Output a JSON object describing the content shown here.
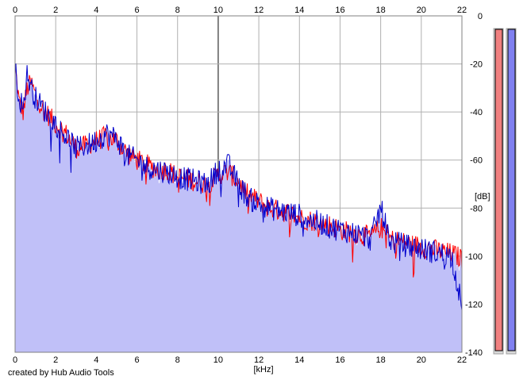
{
  "app": {
    "credit": "created by Hub Audio Tools"
  },
  "colors": {
    "fill": "#c0c0f8",
    "left_channel": "#ff0000",
    "right_channel": "#0000cc",
    "grid": "#b0b0b0",
    "grid_major": "#808080",
    "meter_left": "#f08080",
    "meter_right": "#8080f0"
  },
  "chart_data": {
    "type": "line",
    "title": "",
    "xlabel": "[kHz]",
    "ylabel": "[dB]",
    "xlim": [
      0,
      22
    ],
    "ylim": [
      -140,
      0
    ],
    "x_ticks": [
      0,
      2,
      4,
      6,
      8,
      10,
      12,
      14,
      16,
      18,
      20,
      22
    ],
    "y_ticks": [
      0,
      -20,
      -40,
      -60,
      -80,
      -100,
      -120,
      -140
    ],
    "grid": true,
    "legend": "none",
    "series": [
      {
        "color": "#ff0000",
        "x": [
          0,
          0.2,
          0.4,
          0.6,
          0.8,
          1,
          1.5,
          2,
          2.5,
          3,
          3.5,
          4,
          4.5,
          5,
          5.5,
          6,
          6.5,
          7,
          7.5,
          8,
          8.5,
          9,
          9.5,
          10,
          10.5,
          11,
          11.5,
          12,
          12.5,
          13,
          13.5,
          14,
          14.5,
          15,
          15.5,
          16,
          16.5,
          17,
          17.5,
          18,
          18.5,
          19,
          19.5,
          20,
          20.5,
          21,
          21.5,
          22
        ],
        "values": [
          -21,
          -36,
          -40,
          -30,
          -28,
          -33,
          -40,
          -45,
          -49,
          -55,
          -54,
          -52,
          -50,
          -52,
          -57,
          -60,
          -62,
          -64,
          -64,
          -67,
          -68,
          -69,
          -70,
          -66,
          -65,
          -69,
          -75,
          -77,
          -80,
          -81,
          -82,
          -84,
          -85,
          -86,
          -87,
          -89,
          -90,
          -91,
          -92,
          -88,
          -93,
          -94,
          -95,
          -96,
          -97,
          -98,
          -99,
          -101
        ]
      },
      {
        "color": "#0000cc",
        "x": [
          0,
          0.2,
          0.4,
          0.6,
          0.8,
          1,
          1.5,
          2,
          2.5,
          3,
          3.5,
          4,
          4.5,
          5,
          5.5,
          6,
          6.5,
          7,
          7.5,
          8,
          8.5,
          9,
          9.5,
          10,
          10.5,
          11,
          11.5,
          12,
          12.5,
          13,
          13.5,
          14,
          14.5,
          15,
          15.5,
          16,
          16.5,
          17,
          17.5,
          18,
          18.5,
          19,
          19.5,
          20,
          20.5,
          21,
          21.5,
          22
        ],
        "values": [
          -22,
          -34,
          -38,
          -24,
          -30,
          -34,
          -40,
          -45,
          -50,
          -55,
          -54,
          -52,
          -49,
          -51,
          -58,
          -60,
          -63,
          -64,
          -65,
          -67,
          -68,
          -69,
          -70,
          -64,
          -62,
          -70,
          -76,
          -78,
          -80,
          -81,
          -82,
          -83,
          -85,
          -86,
          -88,
          -89,
          -90,
          -91,
          -93,
          -80,
          -94,
          -95,
          -96,
          -97,
          -98,
          -99,
          -100,
          -121
        ]
      }
    ]
  },
  "meters": {
    "left_level": -140,
    "right_level": -140
  }
}
